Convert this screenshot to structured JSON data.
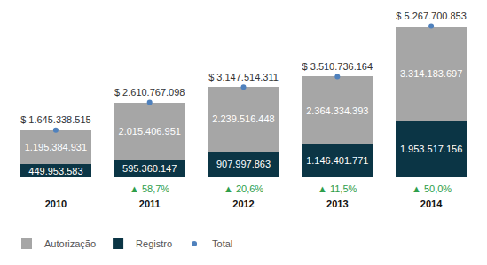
{
  "chart_data": {
    "type": "bar",
    "stacked": true,
    "data_labels": true,
    "tick_labels": "x",
    "grid": false,
    "legend": "bottom left",
    "categories": [
      "2010",
      "2011",
      "2012",
      "2013",
      "2014"
    ],
    "ylim": [
      0,
      5500000000
    ],
    "series": [
      {
        "name": "Autorização",
        "type": "bar",
        "color": "#a6a6a6",
        "values": [
          1195384931,
          2015406951,
          2239516448,
          2364334393,
          3314183697
        ],
        "value_labels": [
          "1.195.384.931",
          "2.015.406.951",
          "2.239.516.448",
          "2.364.334.393",
          "3.314.183.697"
        ]
      },
      {
        "name": "Registro",
        "type": "bar",
        "color": "#0b3545",
        "values": [
          449953583,
          595360147,
          907997863,
          1146401771,
          1953517156
        ],
        "value_labels": [
          "449.953.583",
          "595.360.147",
          "907.997.863",
          "1.146.401.771",
          "1.953.517.156"
        ]
      },
      {
        "name": "Total",
        "type": "scatter",
        "marker": "circle",
        "color": "#4f81bd",
        "values": [
          1645338515,
          2610767098,
          3147514311,
          3510736164,
          5267700853
        ],
        "value_labels": [
          "$ 1.645.338.515",
          "$ 2.610.767.098",
          "$ 3.147.514.311",
          "$ 3.510.736.164",
          "$ 5.267.700.853"
        ]
      }
    ],
    "annotations": [
      {
        "category": "2011",
        "text": "▲ 58,7%",
        "color": "#2e9e4b"
      },
      {
        "category": "2012",
        "text": "▲ 20,6%",
        "color": "#2e9e4b"
      },
      {
        "category": "2013",
        "text": "▲ 11,5%",
        "color": "#2e9e4b"
      },
      {
        "category": "2014",
        "text": "▲ 50,0%",
        "color": "#2e9e4b"
      }
    ]
  }
}
